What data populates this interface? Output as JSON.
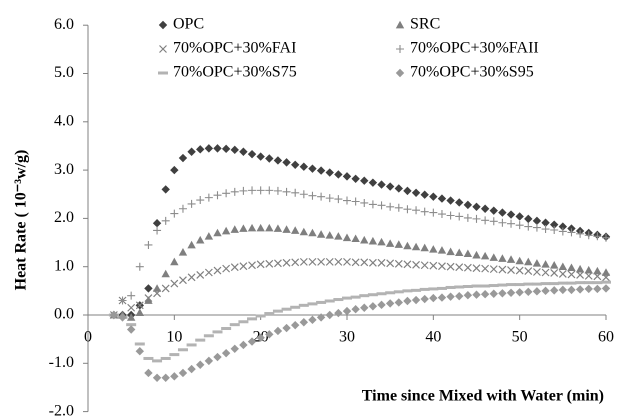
{
  "chart_data": {
    "type": "scatter",
    "x_label": "Time since Mixed with Water (min)",
    "y_label": "Heat Rate ( 10⁻³w/g)",
    "xlim": [
      0,
      60
    ],
    "xticks": [
      0,
      10,
      20,
      30,
      40,
      50,
      60
    ],
    "ylim": [
      -2,
      6
    ],
    "yticks": [
      {
        "value": -2,
        "label": "-2.0"
      },
      {
        "value": -1,
        "label": "-1.0"
      },
      {
        "value": 0,
        "label": "0.0"
      },
      {
        "value": 1,
        "label": "1.0"
      },
      {
        "value": 2,
        "label": "2.0"
      },
      {
        "value": 3,
        "label": "3.0"
      },
      {
        "value": 4,
        "label": "4.0"
      },
      {
        "value": 5,
        "label": "5.0"
      },
      {
        "value": 6,
        "label": "6.0"
      }
    ],
    "grid": false,
    "x": [
      3,
      4,
      5,
      6,
      7,
      8,
      9,
      10,
      11,
      12,
      13,
      14,
      15,
      16,
      17,
      18,
      19,
      20,
      21,
      22,
      23,
      24,
      25,
      26,
      27,
      28,
      29,
      30,
      31,
      32,
      33,
      34,
      35,
      36,
      37,
      38,
      39,
      40,
      41,
      42,
      43,
      44,
      45,
      46,
      47,
      48,
      49,
      50,
      51,
      52,
      53,
      54,
      55,
      56,
      57,
      58,
      59,
      60
    ],
    "series": [
      {
        "name": "OPC",
        "color": "#404040",
        "marker": "diamond",
        "values": [
          0,
          0,
          0,
          0.2,
          0.55,
          1.9,
          2.6,
          3.0,
          3.25,
          3.38,
          3.43,
          3.45,
          3.45,
          3.44,
          3.42,
          3.38,
          3.33,
          3.28,
          3.24,
          3.2,
          3.16,
          3.11,
          3.07,
          3.03,
          2.99,
          2.95,
          2.91,
          2.87,
          2.82,
          2.78,
          2.74,
          2.7,
          2.66,
          2.62,
          2.57,
          2.53,
          2.49,
          2.45,
          2.41,
          2.37,
          2.33,
          2.28,
          2.24,
          2.2,
          2.16,
          2.12,
          2.08,
          2.04,
          1.99,
          1.95,
          1.91,
          1.87,
          1.83,
          1.79,
          1.74,
          1.7,
          1.66,
          1.62
        ]
      },
      {
        "name": "SRC",
        "color": "#7f7f7f",
        "marker": "triangle",
        "values": [
          0,
          0,
          -0.05,
          0.05,
          0.3,
          0.55,
          0.85,
          1.1,
          1.3,
          1.45,
          1.55,
          1.63,
          1.7,
          1.74,
          1.77,
          1.79,
          1.8,
          1.8,
          1.8,
          1.79,
          1.77,
          1.75,
          1.72,
          1.7,
          1.67,
          1.65,
          1.63,
          1.6,
          1.58,
          1.55,
          1.53,
          1.51,
          1.48,
          1.46,
          1.43,
          1.41,
          1.39,
          1.36,
          1.34,
          1.31,
          1.29,
          1.27,
          1.24,
          1.22,
          1.19,
          1.17,
          1.15,
          1.12,
          1.1,
          1.07,
          1.05,
          1.03,
          1.0,
          0.98,
          0.95,
          0.93,
          0.91,
          0.88
        ]
      },
      {
        "name": "70%OPC+30%FAI",
        "color": "#808080",
        "marker": "x",
        "values": [
          0,
          0.3,
          0.15,
          0.2,
          0.35,
          0.45,
          0.55,
          0.65,
          0.72,
          0.78,
          0.83,
          0.88,
          0.92,
          0.96,
          0.99,
          1.01,
          1.03,
          1.05,
          1.06,
          1.07,
          1.08,
          1.09,
          1.1,
          1.1,
          1.1,
          1.1,
          1.1,
          1.1,
          1.09,
          1.09,
          1.08,
          1.08,
          1.07,
          1.06,
          1.05,
          1.04,
          1.03,
          1.02,
          1.01,
          1.0,
          0.99,
          0.98,
          0.97,
          0.96,
          0.95,
          0.94,
          0.93,
          0.92,
          0.91,
          0.89,
          0.88,
          0.87,
          0.85,
          0.84,
          0.83,
          0.81,
          0.8,
          0.78
        ]
      },
      {
        "name": "70%OPC+30%FAII",
        "color": "#8c8c8c",
        "marker": "plus",
        "values": [
          0,
          0.3,
          0.4,
          1.0,
          1.45,
          1.75,
          1.95,
          2.1,
          2.2,
          2.3,
          2.38,
          2.43,
          2.48,
          2.52,
          2.55,
          2.57,
          2.58,
          2.58,
          2.58,
          2.57,
          2.55,
          2.53,
          2.5,
          2.47,
          2.45,
          2.42,
          2.4,
          2.37,
          2.35,
          2.32,
          2.29,
          2.27,
          2.24,
          2.22,
          2.19,
          2.17,
          2.14,
          2.12,
          2.09,
          2.06,
          2.04,
          2.01,
          1.99,
          1.96,
          1.94,
          1.91,
          1.89,
          1.86,
          1.83,
          1.81,
          1.78,
          1.76,
          1.73,
          1.71,
          1.68,
          1.65,
          1.63,
          1.6
        ]
      },
      {
        "name": "70%OPC+30%S75",
        "color": "#b3b3b3",
        "marker": "dash",
        "values": [
          0,
          -0.05,
          -0.2,
          -0.6,
          -0.9,
          -0.95,
          -0.9,
          -0.82,
          -0.72,
          -0.62,
          -0.52,
          -0.43,
          -0.35,
          -0.28,
          -0.2,
          -0.14,
          -0.08,
          -0.02,
          0.03,
          0.08,
          0.12,
          0.16,
          0.2,
          0.23,
          0.26,
          0.29,
          0.32,
          0.35,
          0.37,
          0.4,
          0.42,
          0.44,
          0.46,
          0.48,
          0.5,
          0.51,
          0.53,
          0.54,
          0.55,
          0.57,
          0.58,
          0.59,
          0.6,
          0.6,
          0.61,
          0.62,
          0.63,
          0.63,
          0.64,
          0.64,
          0.65,
          0.65,
          0.66,
          0.66,
          0.67,
          0.67,
          0.67,
          0.68
        ]
      },
      {
        "name": "70%OPC+30%S95",
        "color": "#999999",
        "marker": "diamond",
        "values": [
          0,
          -0.05,
          -0.3,
          -0.75,
          -1.2,
          -1.3,
          -1.3,
          -1.27,
          -1.2,
          -1.12,
          -1.03,
          -0.95,
          -0.87,
          -0.79,
          -0.7,
          -0.62,
          -0.55,
          -0.47,
          -0.4,
          -0.33,
          -0.27,
          -0.21,
          -0.15,
          -0.1,
          -0.05,
          0.0,
          0.04,
          0.08,
          0.12,
          0.15,
          0.18,
          0.21,
          0.24,
          0.26,
          0.29,
          0.31,
          0.33,
          0.35,
          0.36,
          0.38,
          0.39,
          0.41,
          0.42,
          0.43,
          0.44,
          0.45,
          0.46,
          0.47,
          0.48,
          0.49,
          0.5,
          0.51,
          0.52,
          0.52,
          0.53,
          0.54,
          0.54,
          0.55
        ]
      }
    ]
  }
}
